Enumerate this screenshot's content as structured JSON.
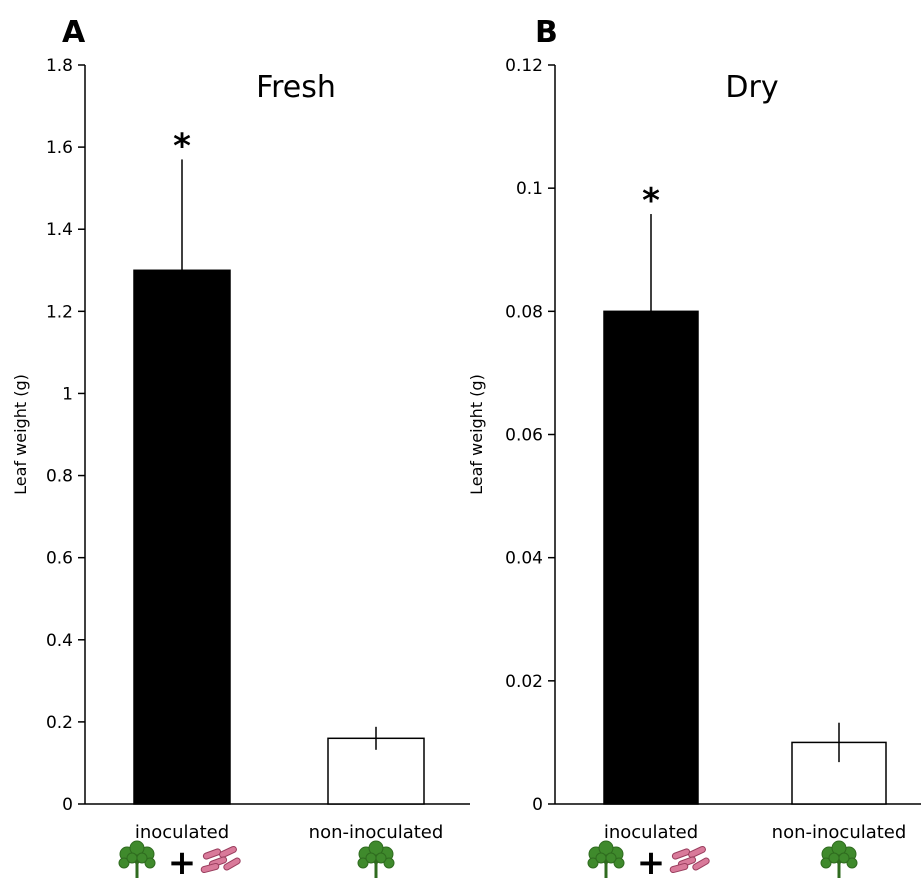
{
  "chart_data": [
    {
      "type": "bar",
      "panel_label": "A",
      "title": "Fresh",
      "xlabel": "",
      "ylabel": "Leaf weight (g)",
      "ylim": [
        0,
        1.8
      ],
      "yticks": [
        "0",
        "0.2",
        "0.4",
        "0.6",
        "0.8",
        "1",
        "1.2",
        "1.4",
        "1.6",
        "1.8"
      ],
      "ytick_values": [
        0,
        0.2,
        0.4,
        0.6,
        0.8,
        1,
        1.2,
        1.4,
        1.6,
        1.8
      ],
      "categories": [
        "inoculated",
        "non-inoculated"
      ],
      "values": [
        1.3,
        0.16
      ],
      "errors": [
        0.27,
        0.028
      ],
      "bar_colors": [
        "#000000",
        "#ffffff"
      ],
      "significance": [
        "*",
        ""
      ],
      "grid": false,
      "legend": "none"
    },
    {
      "type": "bar",
      "panel_label": "B",
      "title": "Dry",
      "xlabel": "",
      "ylabel": "Leaf weight (g)",
      "ylim": [
        0,
        0.12
      ],
      "yticks": [
        "0",
        "0.02",
        "0.04",
        "0.06",
        "0.08",
        "0.1",
        "0.12"
      ],
      "ytick_values": [
        0,
        0.02,
        0.04,
        0.06,
        0.08,
        0.1,
        0.12
      ],
      "categories": [
        "inoculated",
        "non-inoculated"
      ],
      "values": [
        0.08,
        0.01
      ],
      "errors": [
        0.0158,
        0.0032
      ],
      "bar_colors": [
        "#000000",
        "#ffffff"
      ],
      "significance": [
        "*",
        ""
      ],
      "grid": false,
      "legend": "none"
    }
  ],
  "category_icons": {
    "inoculated": [
      "plant-icon",
      "bacteria-icon"
    ],
    "non-inoculated": [
      "plant-icon"
    ]
  },
  "icon_separator": "+",
  "colors": {
    "plant_leaf": "#3f8a2c",
    "plant_stem": "#2f6b1f",
    "bacteria": "#d97a9a",
    "bacteria_outline": "#9a3e5e"
  }
}
